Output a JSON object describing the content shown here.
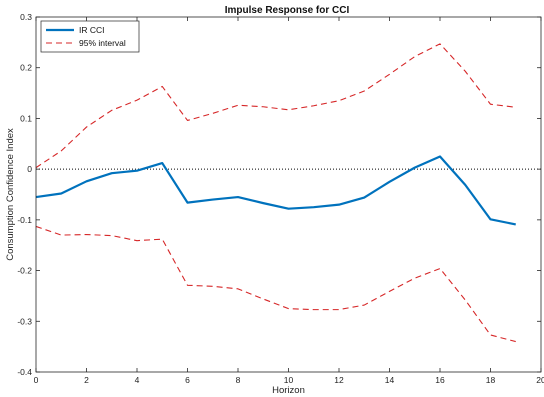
{
  "chart_data": {
    "type": "line",
    "title": "Impulse Response for CCI",
    "xlabel": "Horizon",
    "ylabel": "Consumption Confidence Index",
    "xlim": [
      0,
      20
    ],
    "ylim": [
      -0.4,
      0.3
    ],
    "xticks": [
      0,
      2,
      4,
      6,
      8,
      10,
      12,
      14,
      16,
      18,
      20
    ],
    "yticks": [
      -0.4,
      -0.3,
      -0.2,
      -0.1,
      0,
      0.1,
      0.2,
      0.3
    ],
    "xtick_labels": [
      "0",
      "2",
      "4",
      "6",
      "8",
      "10",
      "12",
      "14",
      "16",
      "18",
      "20"
    ],
    "ytick_labels": [
      "-0.4",
      "-0.3",
      "-0.2",
      "-0.1",
      "0",
      "0.1",
      "0.2",
      "0.3"
    ],
    "grid": false,
    "zero_line": {
      "y": 0,
      "style": "dotted",
      "color": "#000000"
    },
    "legend_position": "top-left",
    "x": [
      0,
      1,
      2,
      3,
      4,
      5,
      6,
      7,
      8,
      9,
      10,
      11,
      12,
      13,
      14,
      15,
      16,
      17,
      18,
      19
    ],
    "series": [
      {
        "name": "IR CCI",
        "color": "#0072BD",
        "style": "solid",
        "values": [
          -0.055,
          -0.048,
          -0.024,
          -0.008,
          -0.003,
          0.012,
          -0.066,
          -0.06,
          -0.055,
          -0.067,
          -0.078,
          -0.075,
          -0.07,
          -0.056,
          -0.025,
          0.003,
          0.025,
          -0.031,
          -0.099,
          -0.109
        ]
      },
      {
        "name": "95% interval",
        "color": "#D62728",
        "style": "dashed",
        "values": [
          0.003,
          0.036,
          0.083,
          0.116,
          0.136,
          0.163,
          0.096,
          0.11,
          0.126,
          0.123,
          0.117,
          0.125,
          0.135,
          0.154,
          0.187,
          0.222,
          0.247,
          0.193,
          0.128,
          0.122
        ]
      },
      {
        "name": "",
        "color": "#D62728",
        "style": "dashed",
        "values": [
          -0.113,
          -0.13,
          -0.129,
          -0.131,
          -0.141,
          -0.138,
          -0.229,
          -0.231,
          -0.236,
          -0.256,
          -0.275,
          -0.277,
          -0.277,
          -0.268,
          -0.241,
          -0.215,
          -0.196,
          -0.258,
          -0.327,
          -0.34
        ]
      }
    ]
  }
}
